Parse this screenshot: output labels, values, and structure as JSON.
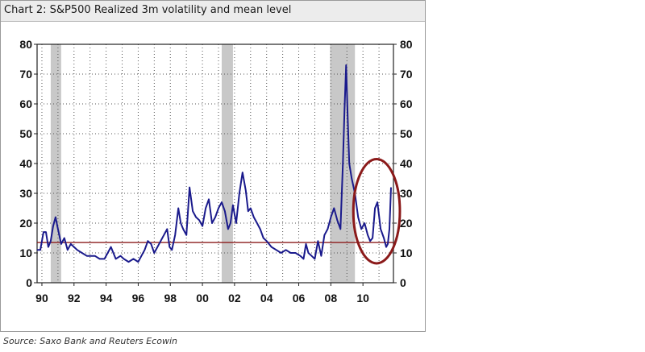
{
  "title": "Chart 2: S&P500 Realized 3m volatility and mean level",
  "source": "Source: Saxo Bank and Reuters Ecowin",
  "colors": {
    "series": "#1a1a8c",
    "mean_line": "#8b1a1a",
    "recession": "#c8c8c8",
    "circle": "#8b1a1a",
    "grid": "#555555"
  },
  "chart_data": {
    "type": "line",
    "title": "Chart 2: S&P500 Realized 3m volatility and mean level",
    "xlabel": "",
    "ylabel": "",
    "xlim": [
      1989.7,
      2011.9
    ],
    "ylim": [
      0,
      80
    ],
    "x_ticks": [
      1990,
      1992,
      1994,
      1996,
      1998,
      2000,
      2002,
      2004,
      2006,
      2008,
      2010
    ],
    "x_tick_labels": [
      "90",
      "92",
      "94",
      "96",
      "98",
      "00",
      "02",
      "04",
      "06",
      "08",
      "10"
    ],
    "y_ticks": [
      0,
      10,
      20,
      30,
      40,
      50,
      60,
      70,
      80
    ],
    "y_tick_labels": [
      "0",
      "10",
      "20",
      "30",
      "40",
      "50",
      "60",
      "70",
      "80"
    ],
    "dual_y_axis": true,
    "grid": true,
    "recession_bands": [
      [
        1990.55,
        1991.2
      ],
      [
        2001.2,
        2001.9
      ],
      [
        2007.95,
        2009.5
      ]
    ],
    "mean_level": 13.5,
    "highlight_circle": {
      "center": [
        2010.85,
        24
      ],
      "radius_x": 1.45,
      "radius_y": 17.5
    },
    "series": [
      {
        "x": [
          1989.7,
          1989.9,
          1990.1,
          1990.25,
          1990.4,
          1990.55,
          1990.7,
          1990.85,
          1991.0,
          1991.2,
          1991.4,
          1991.6,
          1991.8,
          1992.0,
          1992.2,
          1992.5,
          1992.8,
          1993.0,
          1993.3,
          1993.6,
          1993.9,
          1994.1,
          1994.3,
          1994.6,
          1994.9,
          1995.1,
          1995.4,
          1995.7,
          1996.0,
          1996.2,
          1996.4,
          1996.6,
          1996.8,
          1997.0,
          1997.2,
          1997.4,
          1997.6,
          1997.8,
          1997.95,
          1998.1,
          1998.3,
          1998.5,
          1998.65,
          1998.8,
          1999.0,
          1999.2,
          1999.4,
          1999.6,
          1999.8,
          2000.0,
          2000.2,
          2000.4,
          2000.6,
          2000.8,
          2001.0,
          2001.2,
          2001.4,
          2001.6,
          2001.75,
          2001.9,
          2002.1,
          2002.3,
          2002.5,
          2002.7,
          2002.85,
          2003.0,
          2003.2,
          2003.4,
          2003.6,
          2003.8,
          2004.0,
          2004.3,
          2004.6,
          2004.9,
          2005.2,
          2005.5,
          2005.8,
          2006.1,
          2006.3,
          2006.45,
          2006.6,
          2006.8,
          2007.0,
          2007.2,
          2007.4,
          2007.6,
          2007.8,
          2008.0,
          2008.2,
          2008.4,
          2008.6,
          2008.75,
          2008.85,
          2008.95,
          2009.05,
          2009.15,
          2009.3,
          2009.5,
          2009.7,
          2009.9,
          2010.1,
          2010.3,
          2010.45,
          2010.6,
          2010.75,
          2010.9,
          2011.1,
          2011.3,
          2011.45,
          2011.55,
          2011.65,
          2011.75
        ],
        "values": [
          11,
          11,
          17,
          17,
          12,
          14,
          19,
          22,
          18,
          13,
          15,
          11,
          13,
          12,
          11,
          10,
          9,
          9,
          9,
          8,
          8,
          10,
          12,
          8,
          9,
          8,
          7,
          8,
          7,
          9,
          11,
          14,
          13,
          10,
          12,
          14,
          16,
          18,
          12,
          11,
          16,
          25,
          20,
          18,
          16,
          32,
          24,
          22,
          21,
          19,
          25,
          28,
          20,
          22,
          25,
          27,
          24,
          18,
          20,
          26,
          20,
          30,
          37,
          31,
          24,
          25,
          22,
          20,
          18,
          15,
          14,
          12,
          11,
          10,
          11,
          10,
          10,
          9,
          8,
          13,
          10,
          9,
          8,
          14,
          9,
          16,
          18,
          22,
          25,
          21,
          18,
          40,
          58,
          73,
          55,
          40,
          35,
          30,
          22,
          18,
          20,
          16,
          14,
          15,
          25,
          27,
          18,
          15,
          12,
          13,
          18,
          32
        ]
      }
    ]
  }
}
